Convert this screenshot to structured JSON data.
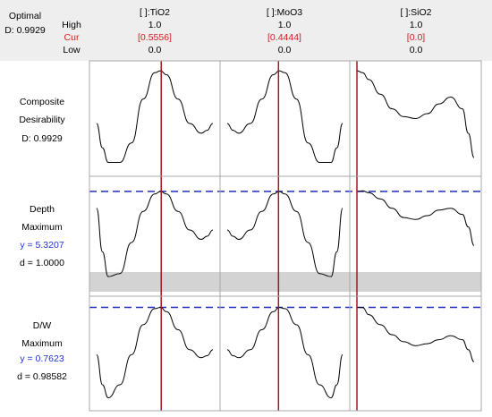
{
  "header": {
    "optimal_label": "Optimal",
    "d_label": "D: 0.9929",
    "row_labels": {
      "high": "High",
      "cur": "Cur",
      "low": "Low"
    }
  },
  "factors": [
    {
      "name": "[ ]:TiO2",
      "high": "1.0",
      "cur": "[0.5556]",
      "low": "0.0",
      "cur_value": 0.5556
    },
    {
      "name": "[ ]:MoO3",
      "high": "1.0",
      "cur": "[0.4444]",
      "low": "0.0",
      "cur_value": 0.4444
    },
    {
      "name": "[ ]:SiO2",
      "high": "1.0",
      "cur": "[0.0]",
      "low": "0.0",
      "cur_value": 0.0
    }
  ],
  "responses": [
    {
      "line1": "Composite",
      "line2": "Desirability",
      "line3": "D: 0.9929",
      "line4": ""
    },
    {
      "line1": "Depth",
      "line2": "Maximum",
      "line3": "y = 5.3207",
      "line4": "d = 1.0000"
    },
    {
      "line1": "D/W",
      "line2": "Maximum",
      "line3": "y = 0.7623",
      "line4": "d = 0.98582"
    }
  ],
  "colors": {
    "cur_text": "#cc2222",
    "cur_line": "#9b1c1c",
    "target_line": "#1f2fbf",
    "value_text": "#2233cc",
    "curve": "#000000",
    "band": "#d3d3d3",
    "header_bg": "#eeeeee",
    "grid": "#a8a8a8"
  },
  "chart_data": {
    "type": "line",
    "title": "",
    "x_range": [
      0,
      1
    ],
    "series": [
      {
        "row": 0,
        "col": 0,
        "x": [
          0,
          0.05,
          0.1,
          0.2,
          0.3,
          0.4,
          0.5,
          0.55,
          0.6,
          0.7,
          0.8,
          0.9,
          0.95,
          1
        ],
        "y": [
          0.45,
          0.2,
          0.05,
          0.05,
          0.25,
          0.7,
          0.97,
          0.99,
          0.95,
          0.7,
          0.45,
          0.35,
          0.38,
          0.45
        ]
      },
      {
        "row": 0,
        "col": 1,
        "x": [
          0,
          0.05,
          0.1,
          0.2,
          0.3,
          0.4,
          0.45,
          0.5,
          0.6,
          0.7,
          0.8,
          0.9,
          0.95,
          1
        ],
        "y": [
          0.45,
          0.38,
          0.35,
          0.45,
          0.7,
          0.95,
          0.99,
          0.97,
          0.7,
          0.25,
          0.05,
          0.05,
          0.2,
          0.45
        ]
      },
      {
        "row": 0,
        "col": 2,
        "x": [
          0,
          0.05,
          0.1,
          0.2,
          0.3,
          0.4,
          0.5,
          0.6,
          0.7,
          0.8,
          0.9,
          0.95,
          1
        ],
        "y": [
          0.99,
          0.97,
          0.9,
          0.75,
          0.6,
          0.52,
          0.5,
          0.55,
          0.65,
          0.72,
          0.6,
          0.35,
          0.1
        ]
      },
      {
        "row": 1,
        "col": 0,
        "x": [
          0,
          0.05,
          0.1,
          0.2,
          0.3,
          0.4,
          0.5,
          0.55,
          0.6,
          0.7,
          0.8,
          0.9,
          0.95,
          1
        ],
        "y": [
          5.05,
          4.35,
          3.95,
          4.0,
          4.5,
          5.0,
          5.28,
          5.3207,
          5.28,
          5.0,
          4.7,
          4.55,
          4.6,
          4.7
        ]
      },
      {
        "row": 1,
        "col": 1,
        "x": [
          0,
          0.05,
          0.1,
          0.2,
          0.3,
          0.4,
          0.45,
          0.5,
          0.6,
          0.7,
          0.8,
          0.9,
          0.95,
          1
        ],
        "y": [
          4.7,
          4.6,
          4.55,
          4.7,
          5.0,
          5.28,
          5.3207,
          5.28,
          5.0,
          4.5,
          4.0,
          3.95,
          4.35,
          5.05
        ]
      },
      {
        "row": 1,
        "col": 2,
        "x": [
          0,
          0.05,
          0.1,
          0.2,
          0.3,
          0.4,
          0.5,
          0.6,
          0.7,
          0.8,
          0.9,
          0.95,
          1
        ],
        "y": [
          5.3207,
          5.33,
          5.3,
          5.2,
          5.05,
          4.9,
          4.87,
          4.93,
          5.02,
          5.05,
          4.95,
          4.75,
          4.45
        ]
      },
      {
        "row": 2,
        "col": 0,
        "x": [
          0,
          0.05,
          0.1,
          0.2,
          0.3,
          0.4,
          0.5,
          0.55,
          0.6,
          0.7,
          0.8,
          0.9,
          0.95,
          1
        ],
        "y": [
          0.715,
          0.685,
          0.672,
          0.685,
          0.715,
          0.745,
          0.761,
          0.7623,
          0.758,
          0.74,
          0.72,
          0.712,
          0.714,
          0.72
        ]
      },
      {
        "row": 2,
        "col": 1,
        "x": [
          0,
          0.05,
          0.1,
          0.2,
          0.3,
          0.4,
          0.45,
          0.5,
          0.6,
          0.7,
          0.8,
          0.9,
          0.95,
          1
        ],
        "y": [
          0.72,
          0.714,
          0.712,
          0.72,
          0.74,
          0.758,
          0.7623,
          0.761,
          0.745,
          0.715,
          0.685,
          0.672,
          0.685,
          0.715
        ]
      },
      {
        "row": 2,
        "col": 2,
        "x": [
          0,
          0.05,
          0.1,
          0.2,
          0.3,
          0.4,
          0.5,
          0.6,
          0.7,
          0.8,
          0.9,
          0.95,
          1
        ],
        "y": [
          0.7623,
          0.762,
          0.755,
          0.745,
          0.735,
          0.728,
          0.724,
          0.726,
          0.73,
          0.734,
          0.73,
          0.72,
          0.708
        ]
      }
    ],
    "row_y_ranges": [
      [
        0,
        1
      ],
      [
        3.78,
        5.42
      ],
      [
        0.668,
        0.7645
      ]
    ],
    "targets": [
      null,
      5.3207,
      0.7623
    ],
    "band_between_rows": [
      1,
      2
    ]
  }
}
